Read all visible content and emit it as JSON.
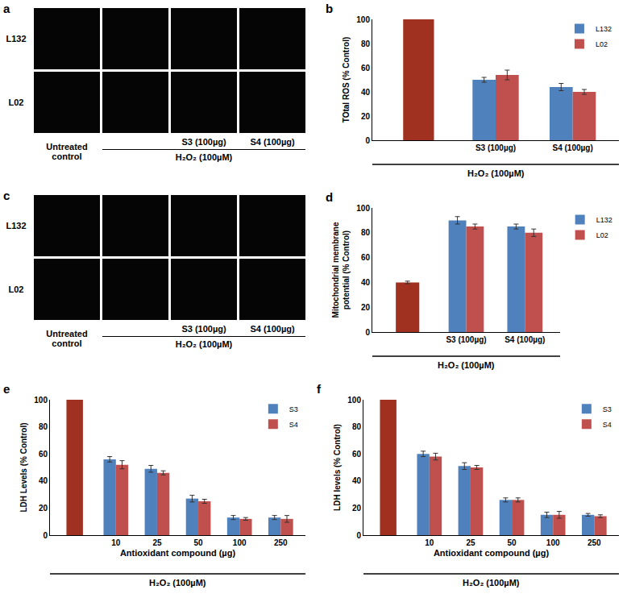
{
  "image_panels": [
    {
      "panel_label": "a",
      "rows": [
        "L132",
        "L02"
      ],
      "columns": [
        "Untreated control",
        null,
        "S3 (100µg)",
        "S4 (100µg)"
      ],
      "group_label": "H₂O₂ (100µM)"
    },
    {
      "panel_label": "c",
      "rows": [
        "L132",
        "L02"
      ],
      "columns": [
        "Untreated control",
        null,
        "S3 (100µg)",
        "S4 (100µg)"
      ],
      "group_label": "H₂O₂ (100µM)"
    }
  ],
  "chart_data": [
    {
      "panel_label": "b",
      "type": "bar",
      "ylabel": "TOtal ROS (% Control)",
      "categories": [
        null,
        "S3 (100µg)",
        "S4 (100µg)"
      ],
      "group_label": "H₂O₂ (100µM)",
      "series": [
        {
          "name": null,
          "color": "#A0301F",
          "values": [
            100,
            null,
            null
          ]
        },
        {
          "name": "L132",
          "color": "#4F81BD",
          "values": [
            null,
            50,
            44
          ],
          "errors": [
            null,
            2,
            3
          ]
        },
        {
          "name": "L02",
          "color": "#C0504D",
          "values": [
            null,
            54,
            40
          ],
          "errors": [
            null,
            4,
            2
          ]
        }
      ],
      "ylim": [
        0,
        100
      ],
      "yticks": [
        0,
        20,
        40,
        60,
        80,
        100
      ],
      "grid": false,
      "legend": "upper right"
    },
    {
      "panel_label": "d",
      "type": "bar",
      "ylabel": "Mitochondrial membrane potential (% Control)",
      "categories": [
        null,
        "S3 (100µg)",
        "S4 (100µg)"
      ],
      "group_label": "H₂O₂ (100µM)",
      "series": [
        {
          "name": null,
          "color": "#A0301F",
          "values": [
            40,
            null,
            null
          ],
          "errors": [
            1,
            null,
            null
          ]
        },
        {
          "name": "L132",
          "color": "#4F81BD",
          "values": [
            null,
            90,
            85
          ],
          "errors": [
            null,
            3,
            2
          ]
        },
        {
          "name": "L02",
          "color": "#C0504D",
          "values": [
            null,
            85,
            80
          ],
          "errors": [
            null,
            2,
            3
          ]
        }
      ],
      "ylim": [
        0,
        100
      ],
      "yticks": [
        0,
        20,
        40,
        60,
        80,
        100
      ],
      "grid": false,
      "legend": "right"
    },
    {
      "panel_label": "e",
      "type": "bar",
      "ylabel": "LDH Levels (% Control)",
      "xlabel": "Antioxidant compound (µg)",
      "categories": [
        null,
        "10",
        "25",
        "50",
        "100",
        "250"
      ],
      "group_label": "H₂O₂ (100µM)",
      "series": [
        {
          "name": null,
          "color": "#A0301F",
          "values": [
            100,
            null,
            null,
            null,
            null,
            null
          ]
        },
        {
          "name": "S3",
          "color": "#4F81BD",
          "values": [
            null,
            56,
            49,
            27,
            13,
            13
          ],
          "errors": [
            null,
            2,
            2.5,
            2.5,
            1.5,
            1.5
          ]
        },
        {
          "name": "S4",
          "color": "#C0504D",
          "values": [
            null,
            52,
            46,
            25,
            12,
            12
          ],
          "errors": [
            null,
            3,
            1.5,
            1.5,
            1,
            2.5
          ]
        }
      ],
      "ylim": [
        0,
        100
      ],
      "yticks": [
        0,
        20,
        40,
        60,
        80,
        100
      ],
      "grid": false,
      "legend": "upper right"
    },
    {
      "panel_label": "f",
      "type": "bar",
      "ylabel": "LDH levels (% Control)",
      "xlabel": "Antioxidant compound (µg)",
      "categories": [
        null,
        "10",
        "25",
        "50",
        "100",
        "250"
      ],
      "group_label": "H₂O₂ (100µM)",
      "series": [
        {
          "name": null,
          "color": "#A0301F",
          "values": [
            100,
            null,
            null,
            null,
            null,
            null
          ]
        },
        {
          "name": "S3",
          "color": "#4F81BD",
          "values": [
            null,
            60,
            51,
            26,
            15,
            15
          ],
          "errors": [
            null,
            2,
            2.5,
            1.5,
            2,
            1
          ]
        },
        {
          "name": "S4",
          "color": "#C0504D",
          "values": [
            null,
            58,
            50,
            26,
            15,
            14
          ],
          "errors": [
            null,
            2.5,
            1.5,
            1.5,
            2.5,
            1
          ]
        }
      ],
      "ylim": [
        0,
        100
      ],
      "yticks": [
        0,
        20,
        40,
        60,
        80,
        100
      ],
      "grid": false,
      "legend": "upper right"
    }
  ]
}
